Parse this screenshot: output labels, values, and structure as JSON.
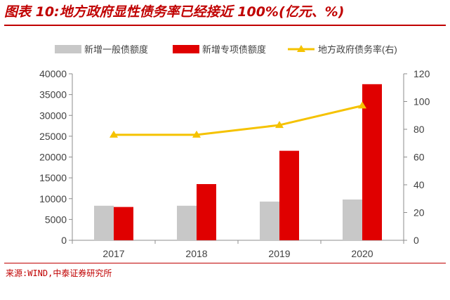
{
  "header": {
    "title": "图表 10:地方政府显性债务率已经接近 100%(亿元、%)"
  },
  "footer": {
    "source": "来源:WIND,中泰证券研究所"
  },
  "colors": {
    "accent": "#c00000",
    "general_bond": "#c8c8c8",
    "special_bond": "#e00000",
    "debt_ratio": "#f5c200",
    "axis": "#8c8c8c"
  },
  "chart_data": {
    "type": "bar",
    "categories": [
      "2017",
      "2018",
      "2019",
      "2020"
    ],
    "series": [
      {
        "name": "新增一般债额度",
        "kind": "bar",
        "axis": "left",
        "color": "#c8c8c8",
        "values": [
          8300,
          8300,
          9300,
          9800
        ]
      },
      {
        "name": "新增专项债额度",
        "kind": "bar",
        "axis": "left",
        "color": "#e00000",
        "values": [
          8000,
          13500,
          21500,
          37500
        ]
      },
      {
        "name": "地方政府债务率(右)",
        "kind": "line",
        "axis": "right",
        "color": "#f5c200",
        "values": [
          76,
          76,
          83,
          97
        ]
      }
    ],
    "ylim": [
      0,
      40000
    ],
    "yticks": [
      0,
      5000,
      10000,
      15000,
      20000,
      25000,
      30000,
      35000,
      40000
    ],
    "y2lim": [
      0,
      120
    ],
    "y2ticks": [
      0,
      20,
      40,
      60,
      80,
      100,
      120
    ],
    "legend_position": "top",
    "grid": false
  }
}
